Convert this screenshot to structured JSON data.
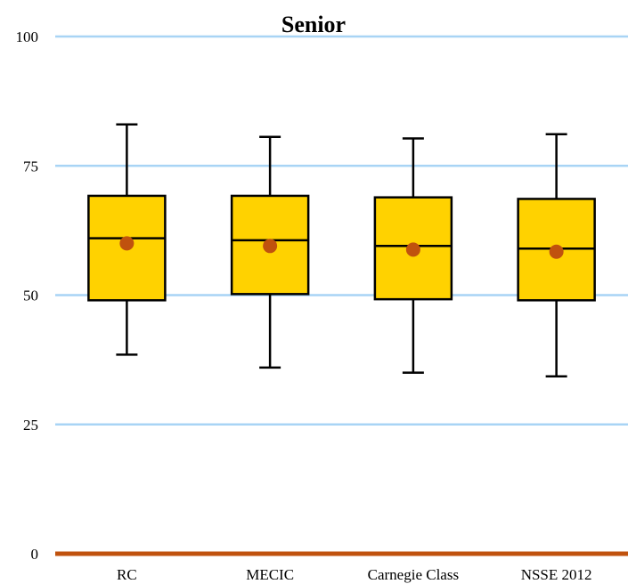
{
  "chart_data": {
    "type": "box",
    "title": "Senior",
    "xlabel": "",
    "ylabel": "",
    "ylim": [
      0,
      100
    ],
    "yticks": [
      0,
      25,
      50,
      75,
      100
    ],
    "ytick_labels": [
      "0",
      "25",
      "50",
      "75",
      "100"
    ],
    "categories": [
      "RC",
      "MECIC",
      "Carnegie Class",
      "NSSE 2012"
    ],
    "boxes": [
      {
        "whisker_low": 38.5,
        "q1": 49.0,
        "median": 61.0,
        "q3": 69.2,
        "whisker_high": 83.0,
        "mean": 60.0
      },
      {
        "whisker_low": 36.0,
        "q1": 50.2,
        "median": 60.6,
        "q3": 69.2,
        "whisker_high": 80.6,
        "mean": 59.5
      },
      {
        "whisker_low": 35.0,
        "q1": 49.2,
        "median": 59.5,
        "q3": 68.9,
        "whisker_high": 80.3,
        "mean": 58.8
      },
      {
        "whisker_low": 34.3,
        "q1": 49.0,
        "median": 59.0,
        "q3": 68.6,
        "whisker_high": 81.1,
        "mean": 58.4
      }
    ],
    "grid": true,
    "colors": {
      "box_fill": "#FFD200",
      "box_stroke": "#000000",
      "mean_marker": "#C0520E",
      "gridline": "#A8D4F5",
      "baseline": "#C0520E"
    }
  }
}
